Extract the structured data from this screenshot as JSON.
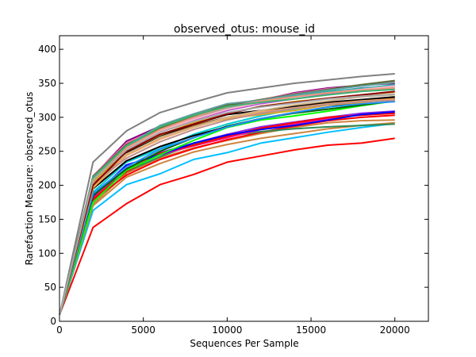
{
  "chart_data": {
    "type": "line",
    "title": "observed_otus: mouse_id",
    "xlabel": "Sequences Per Sample",
    "ylabel": "Rarefaction Measure: observed_otus",
    "xlim": [
      0,
      22000
    ],
    "ylim": [
      0,
      420
    ],
    "xticks": [
      0,
      5000,
      10000,
      15000,
      20000
    ],
    "yticks": [
      0,
      50,
      100,
      150,
      200,
      250,
      300,
      350,
      400
    ],
    "grid": false,
    "x": [
      10,
      2000,
      4000,
      6000,
      8000,
      10000,
      12000,
      14000,
      16000,
      18000,
      20000
    ],
    "series": [
      {
        "color": "#808080",
        "values": [
          10,
          234,
          280,
          307,
          322,
          336,
          343,
          350,
          355,
          360,
          364
        ]
      },
      {
        "color": "#808080",
        "values": [
          10,
          212,
          253,
          280,
          298,
          312,
          322,
          330,
          337,
          342,
          347
        ]
      },
      {
        "color": "#ff0000",
        "values": [
          10,
          138,
          173,
          201,
          216,
          234,
          243,
          252,
          259,
          262,
          269
        ]
      },
      {
        "color": "#00bfff",
        "values": [
          10,
          163,
          201,
          217,
          238,
          248,
          262,
          270,
          278,
          285,
          291
        ]
      },
      {
        "color": "#cd853f",
        "values": [
          10,
          170,
          212,
          232,
          249,
          260,
          269,
          276,
          283,
          288,
          292
        ]
      },
      {
        "color": "#cd853f",
        "values": [
          10,
          172,
          218,
          240,
          255,
          266,
          276,
          285,
          292,
          295,
          296
        ]
      },
      {
        "color": "#ff0000",
        "values": [
          10,
          178,
          215,
          238,
          254,
          267,
          278,
          287,
          295,
          300,
          303
        ]
      },
      {
        "color": "#2e8b57",
        "values": [
          10,
          183,
          220,
          242,
          260,
          272,
          279,
          283,
          286,
          288,
          290
        ]
      },
      {
        "color": "#8a2be2",
        "values": [
          10,
          187,
          224,
          248,
          262,
          275,
          286,
          293,
          300,
          306,
          309
        ]
      },
      {
        "color": "#ff1493",
        "values": [
          10,
          182,
          225,
          245,
          258,
          270,
          282,
          290,
          298,
          304,
          306
        ]
      },
      {
        "color": "#ff0000",
        "values": [
          10,
          180,
          220,
          247,
          259,
          272,
          284,
          292,
          300,
          303,
          306
        ]
      },
      {
        "color": "#0000ff",
        "values": [
          10,
          184,
          230,
          245,
          262,
          274,
          282,
          288,
          296,
          304,
          308
        ]
      },
      {
        "color": "#00ff00",
        "values": [
          10,
          175,
          222,
          245,
          266,
          285,
          296,
          302,
          309,
          317,
          324
        ]
      },
      {
        "color": "#006400",
        "values": [
          10,
          185,
          224,
          250,
          270,
          287,
          298,
          306,
          312,
          318,
          324
        ]
      },
      {
        "color": "#00ced1",
        "values": [
          10,
          190,
          234,
          254,
          275,
          290,
          302,
          312,
          320,
          325,
          327
        ]
      },
      {
        "color": "#000000",
        "values": [
          10,
          195,
          236,
          257,
          273,
          286,
          298,
          307,
          315,
          322,
          328
        ]
      },
      {
        "color": "#1e90ff",
        "values": [
          10,
          188,
          227,
          253,
          270,
          286,
          298,
          307,
          315,
          320,
          323
        ]
      },
      {
        "color": "#daa520",
        "values": [
          10,
          196,
          244,
          268,
          287,
          298,
          304,
          310,
          318,
          322,
          326
        ]
      },
      {
        "color": "#8b4513",
        "values": [
          10,
          200,
          245,
          270,
          288,
          300,
          309,
          316,
          320,
          325,
          328
        ]
      },
      {
        "color": "#000000",
        "values": [
          10,
          203,
          248,
          273,
          290,
          304,
          310,
          316,
          322,
          326,
          330
        ]
      },
      {
        "color": "#f4a460",
        "values": [
          10,
          198,
          244,
          268,
          285,
          299,
          308,
          314,
          320,
          324,
          327
        ]
      },
      {
        "color": "#bc8f8f",
        "values": [
          10,
          202,
          240,
          264,
          282,
          296,
          306,
          313,
          319,
          323,
          325
        ]
      },
      {
        "color": "#d2b48c",
        "values": [
          10,
          205,
          246,
          270,
          286,
          300,
          310,
          318,
          324,
          330,
          333
        ]
      },
      {
        "color": "#daa520",
        "values": [
          10,
          205,
          250,
          274,
          292,
          306,
          316,
          323,
          328,
          333,
          337
        ]
      },
      {
        "color": "#ba55d3",
        "values": [
          10,
          208,
          255,
          278,
          296,
          310,
          320,
          327,
          334,
          339,
          342
        ]
      },
      {
        "color": "#dda0dd",
        "values": [
          10,
          210,
          256,
          282,
          299,
          312,
          322,
          330,
          337,
          342,
          345
        ]
      },
      {
        "color": "#4682b4",
        "values": [
          10,
          210,
          258,
          284,
          301,
          315,
          323,
          330,
          337,
          343,
          346
        ]
      },
      {
        "color": "#20b2aa",
        "values": [
          10,
          212,
          257,
          283,
          300,
          314,
          324,
          331,
          338,
          342,
          348
        ]
      },
      {
        "color": "#ffb6c1",
        "values": [
          10,
          208,
          254,
          280,
          297,
          312,
          322,
          330,
          336,
          341,
          346
        ]
      },
      {
        "color": "#8b0000",
        "values": [
          10,
          200,
          250,
          275,
          290,
          305,
          316,
          322,
          328,
          333,
          338
        ]
      },
      {
        "color": "#800080",
        "values": [
          10,
          213,
          265,
          287,
          303,
          316,
          325,
          336,
          343,
          347,
          350
        ]
      },
      {
        "color": "#ff69b4",
        "values": [
          10,
          214,
          262,
          285,
          304,
          318,
          326,
          335,
          342,
          346,
          352
        ]
      },
      {
        "color": "#556b2f",
        "values": [
          10,
          213,
          260,
          284,
          302,
          318,
          326,
          334,
          341,
          348,
          354
        ]
      },
      {
        "color": "#5f9ea0",
        "values": [
          10,
          212,
          258,
          288,
          305,
          320,
          325,
          333,
          340,
          346,
          351
        ]
      },
      {
        "color": "#e9967a",
        "values": [
          10,
          209,
          255,
          282,
          300,
          315,
          324,
          330,
          336,
          340,
          343
        ]
      },
      {
        "color": "#3cb371",
        "values": [
          10,
          211,
          258,
          286,
          303,
          316,
          322,
          327,
          333,
          338,
          341
        ]
      },
      {
        "color": "#a9a9a9",
        "values": [
          10,
          208,
          252,
          278,
          294,
          307,
          315,
          321,
          327,
          331,
          334
        ]
      }
    ]
  }
}
